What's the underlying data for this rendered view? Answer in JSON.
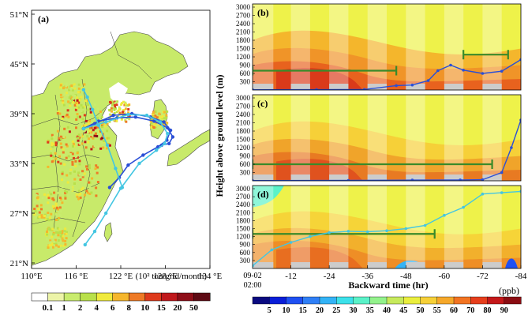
{
  "chart_data": [
    {
      "panel": "(a)",
      "type": "heatmap",
      "description_type": "map",
      "lon_ticks": [
        "110°E",
        "116 °E",
        "122 °E",
        "128 °E",
        "134 °E"
      ],
      "lat_ticks": [
        "51°N",
        "45°N",
        "39°N",
        "33°N",
        "27°N",
        "21°N"
      ],
      "unit_label": "(10² ton/grid/month)",
      "colorbar_ticks": [
        "0.1",
        "1",
        "2",
        "4",
        "6",
        "8",
        "10",
        "15",
        "20",
        "50"
      ],
      "colorbar_colors": [
        "#ffffff",
        "#ecf4a8",
        "#c9ec6e",
        "#b9e04a",
        "#f0ea3c",
        "#f5b62c",
        "#ee7a26",
        "#de3a1c",
        "#c0181c",
        "#8e0e18",
        "#5e0a14"
      ],
      "trajectories": [
        {
          "color": "#2a4fd6",
          "lon": [
            117.0,
            118.5,
            121,
            123.5,
            126,
            127.8,
            128.7,
            128.2,
            127,
            125,
            123,
            121.8,
            120.5
          ],
          "lat": [
            37.2,
            37.8,
            38.8,
            39.0,
            38.6,
            38.0,
            37.0,
            35.8,
            35.0,
            34.0,
            32.8,
            31.3,
            30.1
          ]
        },
        {
          "color": "#2a4fd6",
          "lon": [
            117.0,
            119,
            121.5,
            124,
            126.5,
            128.3,
            129.0,
            128.5,
            127.5
          ],
          "lat": [
            37.2,
            38.1,
            38.5,
            38.6,
            38.1,
            37.3,
            36.2,
            35.4,
            35.2
          ]
        },
        {
          "color": "#44c6e2",
          "lon": [
            117.0,
            117.5,
            118.2,
            119,
            120.2,
            121.3,
            122.2
          ],
          "lat": [
            41.9,
            41.0,
            39.5,
            37.6,
            35.2,
            32.4,
            30.1
          ]
        },
        {
          "color": "#44c6e2",
          "lon": [
            117.0,
            120,
            123,
            125.5,
            127.3,
            128.3,
            127.9,
            126.8,
            124.5,
            122,
            120,
            118.5,
            117.2
          ],
          "lat": [
            37.2,
            38.0,
            38.9,
            38.8,
            38.0,
            36.6,
            35.4,
            34.6,
            33.0,
            30.0,
            27.0,
            24.8,
            23.2
          ]
        }
      ]
    },
    {
      "panel": "(b)",
      "type": "heatmap",
      "ylabel": "Height above ground level (m)",
      "xlabel": "Backward time (hr)",
      "y_ticks": [
        300,
        600,
        900,
        1200,
        1500,
        1800,
        2100,
        2400,
        2700,
        3000
      ],
      "x_ticks": [
        "-12",
        "-24",
        "-36",
        "-48",
        "-60",
        "-72",
        "-84"
      ],
      "x_start_label": [
        "09-02",
        "02:00"
      ],
      "shaded_periods_hr": [
        [
          0,
          -6.5
        ],
        [
          -12,
          -18
        ],
        [
          -24,
          -30
        ],
        [
          -36,
          -42
        ],
        [
          -48,
          -54
        ],
        [
          -60,
          -66
        ],
        [
          -72,
          -78
        ]
      ],
      "pblh_bar_m": [
        {
          "x0": 0,
          "x1": -45,
          "y": 700
        },
        {
          "x0": -66,
          "x1": -80,
          "y": 1280
        }
      ],
      "trajectory_height": {
        "x": [
          0,
          -20,
          -35,
          -45,
          -50,
          -55,
          -58,
          -62,
          -66,
          -72,
          -78,
          -84
        ],
        "y": [
          10,
          12,
          20,
          160,
          180,
          340,
          700,
          900,
          720,
          600,
          680,
          1100
        ]
      }
    },
    {
      "panel": "(c)",
      "type": "heatmap",
      "pblh_bar_m": [
        {
          "x0": 0,
          "x1": -75,
          "y": 600
        }
      ],
      "trajectory_height": {
        "x": [
          0,
          -30,
          -50,
          -65,
          -72,
          -78,
          -81,
          -84
        ],
        "y": [
          10,
          15,
          25,
          30,
          40,
          300,
          1200,
          2200
        ]
      }
    },
    {
      "panel": "(d)",
      "type": "heatmap",
      "pblh_bar_m": [
        {
          "x0": 0,
          "x1": -57,
          "y": 1300
        }
      ],
      "trajectory_height": {
        "x": [
          0,
          -6,
          -12,
          -18,
          -24,
          -30,
          -36,
          -42,
          -48,
          -54,
          -60,
          -66,
          -72,
          -78,
          -84
        ],
        "y": [
          100,
          700,
          980,
          1200,
          1350,
          1400,
          1380,
          1420,
          1500,
          1620,
          2000,
          2300,
          2800,
          2850,
          2900
        ]
      }
    },
    {
      "type": "colorbar",
      "unit_label": "(ppb)",
      "ticks": [
        "5",
        "10",
        "15",
        "20",
        "25",
        "30",
        "35",
        "40",
        "45",
        "50",
        "55",
        "60",
        "70",
        "80",
        "90"
      ],
      "colors": [
        "#0a0a80",
        "#0a1ed8",
        "#1f50f2",
        "#2f7ff6",
        "#33b3f6",
        "#3ce1ea",
        "#5af2c8",
        "#93f28c",
        "#c7ea5c",
        "#eaee3e",
        "#f6d038",
        "#f6a82a",
        "#f27422",
        "#e63e1c",
        "#c4181a",
        "#8a0c12"
      ]
    }
  ],
  "panel_labels": {
    "a": "(a)",
    "b": "(b)",
    "c": "(c)",
    "d": "(d)"
  }
}
